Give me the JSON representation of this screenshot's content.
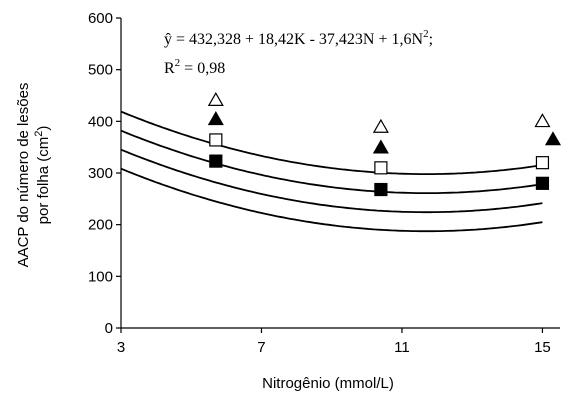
{
  "chart_data": {
    "type": "scatter",
    "xlabel": "Nitrogênio (mmol/L)",
    "ylabel_line1": "AACP do número de lesões",
    "ylabel_line2_main": "por folha (cm",
    "ylabel_line2_sup": "2",
    "ylabel_line2_end": ")",
    "xlim": [
      3,
      15.5
    ],
    "ylim": [
      0,
      600
    ],
    "x_ticks": [
      3,
      7,
      11,
      15
    ],
    "y_ticks": [
      0,
      100,
      200,
      300,
      400,
      500,
      600
    ],
    "equation": {
      "yhat": "ŷ",
      "main": " = 432,328 + 18,42K - 37,423N + 1,6N",
      "sup": "2",
      "end": ";",
      "r2_main": "R",
      "r2_sup": "2",
      "r2_end": " = 0,98"
    },
    "series": [
      {
        "marker": "triangle-open",
        "x": [
          5.7,
          10.4,
          15.0
        ],
        "y": [
          441,
          389,
          400
        ],
        "fit_K": 4.58
      },
      {
        "marker": "triangle-filled",
        "x": [
          5.7,
          10.4,
          15.3
        ],
        "y": [
          404,
          349,
          365
        ],
        "fit_K": 2.58
      },
      {
        "marker": "square-open",
        "x": [
          5.7,
          10.4,
          15.0
        ],
        "y": [
          364,
          310,
          320
        ],
        "fit_K": 0.58
      },
      {
        "marker": "square-filled",
        "x": [
          5.7,
          10.4,
          15.0
        ],
        "y": [
          323,
          268,
          280
        ],
        "fit_K": -1.42
      }
    ]
  }
}
